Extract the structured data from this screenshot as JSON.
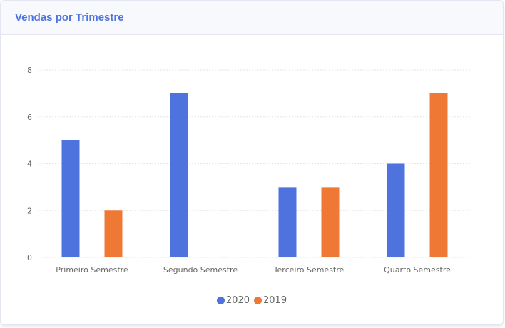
{
  "card": {
    "title": "Vendas por Trimestre"
  },
  "chart_data": {
    "type": "bar",
    "title": "",
    "xlabel": "",
    "ylabel": "",
    "categories": [
      "Primeiro Semestre",
      "Segundo Semestre",
      "Terceiro Semestre",
      "Quarto Semestre"
    ],
    "series": [
      {
        "name": "2020",
        "values": [
          5,
          7,
          3,
          4
        ],
        "color": "#4e73df"
      },
      {
        "name": "2019",
        "values": [
          2,
          0,
          3,
          7
        ],
        "color": "#f07835"
      }
    ],
    "ylim": [
      0,
      8
    ],
    "yticks": [
      0,
      2,
      4,
      6,
      8
    ],
    "grid": true,
    "legend_position": "bottom"
  }
}
